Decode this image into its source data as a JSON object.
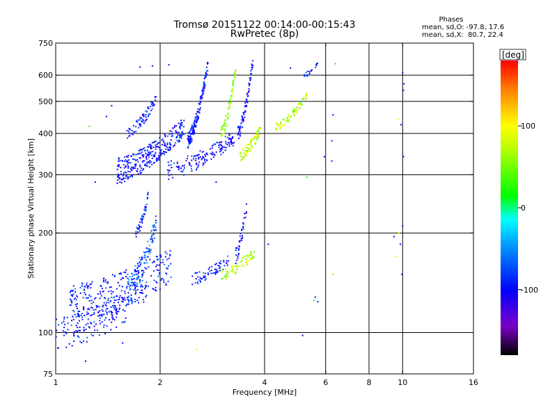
{
  "chart_data": {
    "type": "scatter",
    "title": "Tromsø 20151122 00:14:00-00:15:43",
    "subtitle": "RwPretec (8p)",
    "xlabel": "Frequency [MHz]",
    "ylabel": "Stationary phase Virtual Height [km]",
    "x_scale": "log",
    "y_scale": "log",
    "xlim": [
      1,
      16
    ],
    "ylim": [
      75,
      750
    ],
    "x_ticks": [
      1,
      2,
      4,
      6,
      8,
      10,
      16
    ],
    "x_tick_labels": [
      "1",
      "2",
      "4",
      "6",
      "8",
      "10",
      "16"
    ],
    "y_ticks": [
      75,
      100,
      200,
      300,
      400,
      500,
      600,
      750
    ],
    "y_tick_labels": [
      "75",
      "100",
      "200",
      "300",
      "400",
      "500",
      "600",
      "750"
    ],
    "grid": true,
    "grid_x": [
      2,
      4,
      6,
      8,
      10
    ],
    "grid_y": [
      100,
      200,
      300,
      400,
      500,
      600
    ],
    "stats": {
      "heading": "Phases",
      "line_o": "mean, sd,O: -97.8, 17.6",
      "line_x": "mean, sd,X:  80.7, 22.4"
    },
    "colorbar": {
      "label": "[deg]",
      "min": -180,
      "max": 180,
      "ticks": [
        100,
        0,
        -100
      ],
      "tick_labels": [
        "100",
        "0",
        "-100"
      ]
    },
    "traces": [
      {
        "fmin": 1.0,
        "fmax": 1.6,
        "hmin": 100,
        "hmax": 120,
        "spread": 12,
        "n": 120,
        "phase": -102
      },
      {
        "fmin": 1.1,
        "fmax": 2.15,
        "hmin": 120,
        "hmax": 160,
        "spread": 20,
        "n": 340,
        "phase": -100
      },
      {
        "fmin": 1.6,
        "fmax": 1.95,
        "hmin": 135,
        "hmax": 215,
        "spread": 14,
        "n": 120,
        "phase": -78
      },
      {
        "fmin": 1.7,
        "fmax": 1.85,
        "hmin": 200,
        "hmax": 260,
        "spread": 8,
        "n": 40,
        "phase": -95
      },
      {
        "fmin": 2.45,
        "fmax": 3.15,
        "hmin": 145,
        "hmax": 165,
        "spread": 6,
        "n": 70,
        "phase": -98
      },
      {
        "fmin": 3.0,
        "fmax": 3.75,
        "hmin": 150,
        "hmax": 175,
        "spread": 6,
        "n": 70,
        "phase": 88
      },
      {
        "fmin": 3.3,
        "fmax": 3.55,
        "hmin": 170,
        "hmax": 240,
        "spread": 10,
        "n": 40,
        "phase": -112
      },
      {
        "fmin": 1.5,
        "fmax": 2.35,
        "hmin": 310,
        "hmax": 420,
        "spread": 28,
        "n": 320,
        "phase": -103
      },
      {
        "fmin": 1.6,
        "fmax": 1.95,
        "hmin": 400,
        "hmax": 510,
        "spread": 18,
        "n": 70,
        "phase": -100
      },
      {
        "fmin": 2.4,
        "fmax": 2.75,
        "hmin": 380,
        "hmax": 650,
        "spread": 22,
        "n": 160,
        "phase": -98
      },
      {
        "fmin": 2.1,
        "fmax": 3.3,
        "hmin": 310,
        "hmax": 390,
        "spread": 20,
        "n": 150,
        "phase": -105
      },
      {
        "fmin": 3.0,
        "fmax": 3.3,
        "hmin": 400,
        "hmax": 620,
        "spread": 20,
        "n": 70,
        "phase": 78
      },
      {
        "fmin": 3.4,
        "fmax": 3.9,
        "hmin": 345,
        "hmax": 410,
        "spread": 14,
        "n": 80,
        "phase": 95
      },
      {
        "fmin": 3.35,
        "fmax": 3.7,
        "hmin": 400,
        "hmax": 660,
        "spread": 22,
        "n": 80,
        "phase": -110
      },
      {
        "fmin": 4.3,
        "fmax": 5.3,
        "hmin": 420,
        "hmax": 520,
        "spread": 12,
        "n": 70,
        "phase": 92
      },
      {
        "fmin": 5.2,
        "fmax": 5.7,
        "hmin": 600,
        "hmax": 650,
        "spread": 10,
        "n": 18,
        "phase": -102
      }
    ],
    "points": [
      {
        "f": 1.22,
        "h": 82,
        "phase": -100
      },
      {
        "f": 1.56,
        "h": 93,
        "phase": -100
      },
      {
        "f": 2.55,
        "h": 89,
        "phase": 100
      },
      {
        "f": 5.15,
        "h": 98,
        "phase": -100
      },
      {
        "f": 5.6,
        "h": 128,
        "phase": -100
      },
      {
        "f": 5.55,
        "h": 125,
        "phase": 10
      },
      {
        "f": 5.7,
        "h": 124,
        "phase": -100
      },
      {
        "f": 4.1,
        "h": 185,
        "phase": -100
      },
      {
        "f": 6.3,
        "h": 150,
        "phase": 130
      },
      {
        "f": 6.25,
        "h": 330,
        "phase": -100
      },
      {
        "f": 6.25,
        "h": 380,
        "phase": -140
      },
      {
        "f": 6.3,
        "h": 455,
        "phase": -100
      },
      {
        "f": 6.4,
        "h": 650,
        "phase": 20
      },
      {
        "f": 5.95,
        "h": 340,
        "phase": -100
      },
      {
        "f": 5.3,
        "h": 295,
        "phase": 30
      },
      {
        "f": 9.45,
        "h": 195,
        "phase": -100
      },
      {
        "f": 9.6,
        "h": 170,
        "phase": 100
      },
      {
        "f": 9.75,
        "h": 200,
        "phase": 100
      },
      {
        "f": 9.85,
        "h": 185,
        "phase": -100
      },
      {
        "f": 9.95,
        "h": 150,
        "phase": -100
      },
      {
        "f": 10.0,
        "h": 210,
        "phase": -100
      },
      {
        "f": 10.05,
        "h": 340,
        "phase": -100
      },
      {
        "f": 9.7,
        "h": 440,
        "phase": 100
      },
      {
        "f": 9.9,
        "h": 425,
        "phase": -100
      },
      {
        "f": 10.05,
        "h": 540,
        "phase": -100
      },
      {
        "f": 10.1,
        "h": 565,
        "phase": -100
      },
      {
        "f": 10.0,
        "h": 610,
        "phase": -100
      },
      {
        "f": 1.3,
        "h": 285,
        "phase": -100
      },
      {
        "f": 2.9,
        "h": 285,
        "phase": -100
      },
      {
        "f": 1.75,
        "h": 635,
        "phase": -100
      },
      {
        "f": 1.9,
        "h": 640,
        "phase": -100
      },
      {
        "f": 2.12,
        "h": 645,
        "phase": -100
      },
      {
        "f": 4.75,
        "h": 630,
        "phase": -100
      },
      {
        "f": 1.45,
        "h": 485,
        "phase": -100
      },
      {
        "f": 1.25,
        "h": 420,
        "phase": 50
      },
      {
        "f": 1.4,
        "h": 450,
        "phase": -100
      }
    ]
  }
}
